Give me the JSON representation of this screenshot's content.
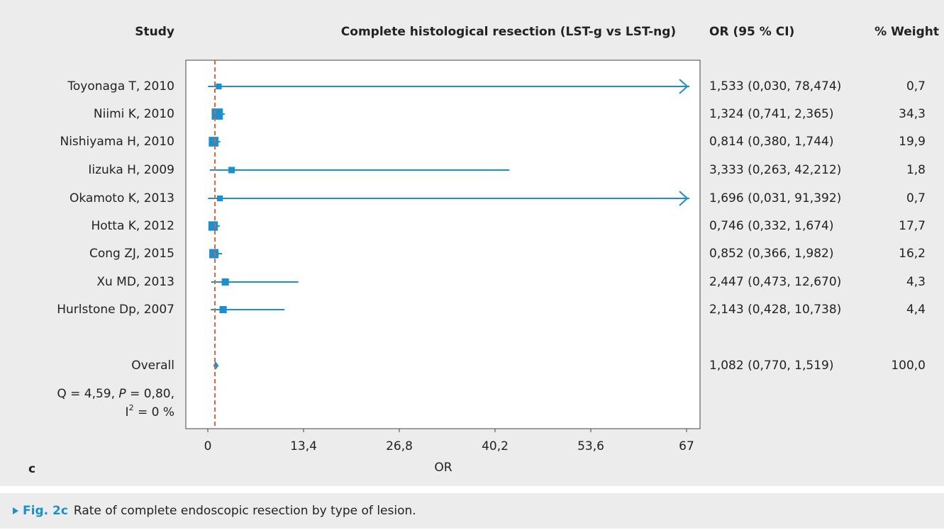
{
  "chart_data": {
    "type": "forest",
    "headers": {
      "study": "Study",
      "title": "Complete histological resection (LST-g vs LST-ng)",
      "ci": "OR (95 % CI)",
      "weight": "% Weight"
    },
    "categories": [
      "Toyonaga T, 2010",
      "Niimi K, 2010",
      "Nishiyama H, 2010",
      "Iizuka H, 2009",
      "Okamoto K, 2013",
      "Hotta K, 2012",
      "Cong ZJ, 2015",
      "Xu MD, 2013",
      "Hurlstone Dp, 2007"
    ],
    "values": [
      1.533,
      1.324,
      0.814,
      3.333,
      1.696,
      0.746,
      0.852,
      2.447,
      2.143
    ],
    "lower": [
      0.03,
      0.741,
      0.38,
      0.263,
      0.031,
      0.332,
      0.366,
      0.473,
      0.428
    ],
    "upper": [
      78.474,
      2.365,
      1.744,
      42.212,
      91.392,
      1.674,
      1.982,
      12.67,
      10.738
    ],
    "value_labels": [
      "1,533 (0,030, 78,474)",
      "1,324 (0,741, 2,365)",
      "0,814 (0,380, 1,744)",
      "3,333 (0,263, 42,212)",
      "1,696 (0,031, 91,392)",
      "0,746 (0,332, 1,674)",
      "0,852 (0,366, 1,982)",
      "2,447 (0,473, 12,670)",
      "2,143 (0,428, 10,738)"
    ],
    "weights": [
      0.7,
      34.3,
      19.9,
      1.8,
      0.7,
      17.7,
      16.2,
      4.3,
      4.4
    ],
    "weight_labels": [
      "0,7",
      "34,3",
      "19,9",
      "1,8",
      "0,7",
      "17,7",
      "16,2",
      "4,3",
      "4,4"
    ],
    "overall": {
      "name": "Overall",
      "value": 1.082,
      "lower": 0.77,
      "upper": 1.519,
      "label": "1,082 (0,770, 1,519)",
      "weight": 100,
      "weight_label": "100,0"
    },
    "heterogeneity": [
      "Q = 4,59, ",
      "P",
      " = 0,80,",
      "I",
      "2",
      " = 0 %"
    ],
    "xlabel": "OR",
    "panel": "c",
    "xlim": [
      0,
      67
    ],
    "xticks": [
      0,
      {
        "value": 13.4,
        "label": "13,4"
      },
      {
        "value": 26.8,
        "label": "26,8"
      },
      {
        "value": 40.2,
        "label": "40,2"
      },
      {
        "value": 53.6,
        "label": "53,6"
      },
      67
    ],
    "ref_line": 1,
    "color": "#1a8fd1",
    "ref_color": "#d4673a"
  },
  "caption": {
    "label": "Fig. 2c",
    "text": "Rate of complete endoscopic resection by type of lesion."
  }
}
